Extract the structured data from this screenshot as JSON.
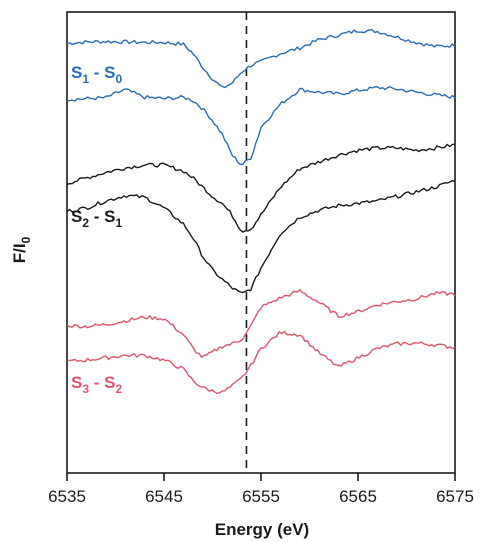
{
  "chart_data": {
    "type": "line",
    "xlabel": "Energy (eV)",
    "ylabel_main": "F/I",
    "ylabel_sub": "0",
    "xlim": [
      6535,
      6575
    ],
    "x_ticks": [
      6535,
      6545,
      6555,
      6565,
      6575
    ],
    "marker_line_x": 6553.5,
    "y_units": "arbitrary (offset traces)",
    "ylim": [
      0,
      1
    ],
    "series": [
      {
        "name_main1": "S",
        "name_sub1": "1",
        "name_sep": " - ",
        "name_main2": "S",
        "name_sub2": "0",
        "color": "#2b6cb8",
        "curves": [
          {
            "x": [
              6535,
              6537,
              6539,
              6541,
              6543,
              6545,
              6547,
              6548,
              6549,
              6550,
              6551,
              6552,
              6553,
              6554,
              6555,
              6557,
              6559,
              6561,
              6563,
              6565,
              6567,
              6569,
              6571,
              6573,
              6575
            ],
            "y": [
              0.932,
              0.935,
              0.936,
              0.935,
              0.934,
              0.934,
              0.93,
              0.91,
              0.88,
              0.855,
              0.835,
              0.845,
              0.87,
              0.885,
              0.892,
              0.91,
              0.922,
              0.94,
              0.95,
              0.96,
              0.958,
              0.946,
              0.934,
              0.925,
              0.928
            ]
          },
          {
            "x": [
              6535,
              6537,
              6539,
              6541,
              6543,
              6545,
              6547,
              6548,
              6549,
              6550,
              6551,
              6552,
              6553,
              6554,
              6555,
              6557,
              6559,
              6561,
              6563,
              6565,
              6567,
              6569,
              6571,
              6573,
              6575
            ],
            "y": [
              0.81,
              0.812,
              0.814,
              0.832,
              0.815,
              0.812,
              0.815,
              0.808,
              0.79,
              0.765,
              0.735,
              0.69,
              0.668,
              0.685,
              0.75,
              0.8,
              0.832,
              0.826,
              0.822,
              0.83,
              0.836,
              0.833,
              0.826,
              0.82,
              0.815
            ]
          }
        ]
      },
      {
        "name_main1": "S",
        "name_sub1": "2",
        "name_sep": " - ",
        "name_main2": "S",
        "name_sub2": "1",
        "color": "#1a1a1a",
        "curves": [
          {
            "x": [
              6535,
              6537,
              6539,
              6541,
              6543,
              6545,
              6547,
              6548,
              6549,
              6550,
              6551,
              6552,
              6553,
              6554,
              6555,
              6557,
              6559,
              6561,
              6563,
              6565,
              6567,
              6569,
              6571,
              6573,
              6575
            ],
            "y": [
              0.628,
              0.64,
              0.652,
              0.662,
              0.668,
              0.668,
              0.655,
              0.64,
              0.62,
              0.6,
              0.585,
              0.56,
              0.525,
              0.53,
              0.56,
              0.62,
              0.66,
              0.675,
              0.69,
              0.7,
              0.705,
              0.705,
              0.7,
              0.705,
              0.712
            ]
          },
          {
            "x": [
              6535,
              6537,
              6539,
              6541,
              6543,
              6545,
              6547,
              6548,
              6549,
              6550,
              6551,
              6552,
              6553,
              6554,
              6555,
              6557,
              6559,
              6561,
              6563,
              6565,
              6567,
              6569,
              6571,
              6573,
              6575
            ],
            "y": [
              0.568,
              0.575,
              0.59,
              0.602,
              0.598,
              0.575,
              0.54,
              0.51,
              0.47,
              0.44,
              0.42,
              0.402,
              0.388,
              0.4,
              0.445,
              0.52,
              0.555,
              0.57,
              0.58,
              0.585,
              0.59,
              0.6,
              0.61,
              0.62,
              0.635
            ]
          }
        ]
      },
      {
        "name_main1": "S",
        "name_sub1": "3",
        "name_sep": " - ",
        "name_main2": "S",
        "name_sub2": "2",
        "color": "#e0566a",
        "curves": [
          {
            "x": [
              6535,
              6537,
              6539,
              6541,
              6543,
              6545,
              6547,
              6548,
              6549,
              6550,
              6551,
              6552,
              6553,
              6554,
              6555,
              6557,
              6559,
              6561,
              6563,
              6565,
              6567,
              6569,
              6571,
              6573,
              6575
            ],
            "y": [
              0.32,
              0.318,
              0.322,
              0.33,
              0.338,
              0.335,
              0.3,
              0.27,
              0.25,
              0.262,
              0.275,
              0.28,
              0.29,
              0.32,
              0.36,
              0.38,
              0.395,
              0.37,
              0.34,
              0.35,
              0.365,
              0.372,
              0.378,
              0.39,
              0.388
            ]
          },
          {
            "x": [
              6535,
              6537,
              6539,
              6541,
              6543,
              6545,
              6547,
              6548,
              6549,
              6550,
              6551,
              6552,
              6553,
              6554,
              6555,
              6557,
              6559,
              6561,
              6563,
              6565,
              6567,
              6569,
              6571,
              6573,
              6575
            ],
            "y": [
              0.242,
              0.245,
              0.25,
              0.255,
              0.255,
              0.245,
              0.225,
              0.2,
              0.185,
              0.178,
              0.175,
              0.188,
              0.205,
              0.235,
              0.27,
              0.305,
              0.3,
              0.26,
              0.23,
              0.25,
              0.27,
              0.28,
              0.282,
              0.278,
              0.272
            ]
          }
        ]
      }
    ]
  }
}
